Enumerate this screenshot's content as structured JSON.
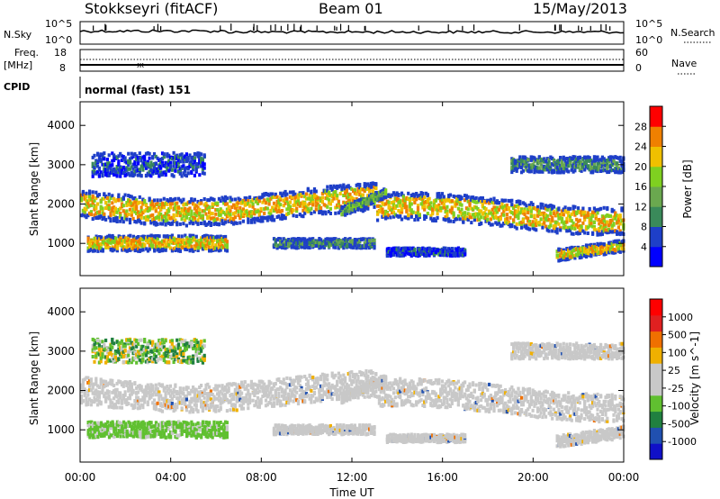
{
  "header": {
    "station": "Stokkseyri (fitACF)",
    "beam": "Beam 01",
    "date": "15/May/2013"
  },
  "strip_labels": {
    "nsky": "N.Sky",
    "nsky_hi": "10^5",
    "nsky_lo": "10^0",
    "nsky_hi_r": "10^5",
    "nsky_lo_r": "10^0",
    "nsearch": "N.Search",
    "freq": "Freq.",
    "freq_unit": "[MHz]",
    "freq_hi": "18",
    "freq_lo": "8",
    "nave_hi": "60",
    "nave_lo": "0",
    "nave": "Nave",
    "cpid": "CPID",
    "cpid_value": "normal (fast) 151"
  },
  "colors": {
    "power": [
      "#0000ff",
      "#1e3fc8",
      "#3a8a5a",
      "#6aa84f",
      "#7fd020",
      "#f0c000",
      "#f08000",
      "#ff0000"
    ],
    "velocity": [
      "#1010c8",
      "#2050b0",
      "#208040",
      "#60c030",
      "#c8c8c8",
      "#c8c8c8",
      "#f0b000",
      "#f07000",
      "#e02020",
      "#ff0000"
    ],
    "ground": "#c8c8c8"
  },
  "chart_data": [
    {
      "type": "heatmap",
      "panel": "power",
      "ylabel": "Slant Range [km]",
      "ylim": [
        180,
        4600
      ],
      "yticks": [
        "1000",
        "2000",
        "3000",
        "4000"
      ],
      "colorbar_label": "Power [dB]",
      "colorbar_ticks": [
        "4",
        "8",
        "12",
        "16",
        "20",
        "24",
        "28"
      ],
      "colorbar_range": [
        0,
        32
      ],
      "grid": false
    },
    {
      "type": "heatmap",
      "panel": "velocity",
      "ylabel": "Slant Range [km]",
      "ylim": [
        180,
        4600
      ],
      "yticks": [
        "1000",
        "2000",
        "3000",
        "4000"
      ],
      "colorbar_label": "Velocity [m s^-1]",
      "colorbar_ticks": [
        "1000",
        "500",
        "100",
        "25",
        "-25",
        "-100",
        "-500",
        "-1000"
      ],
      "grid": false
    }
  ],
  "xaxis": {
    "label": "Time UT",
    "ticks": [
      "00:00",
      "04:00",
      "08:00",
      "12:00",
      "16:00",
      "20:00",
      "00:00"
    ],
    "range_hours": [
      0,
      24
    ]
  }
}
